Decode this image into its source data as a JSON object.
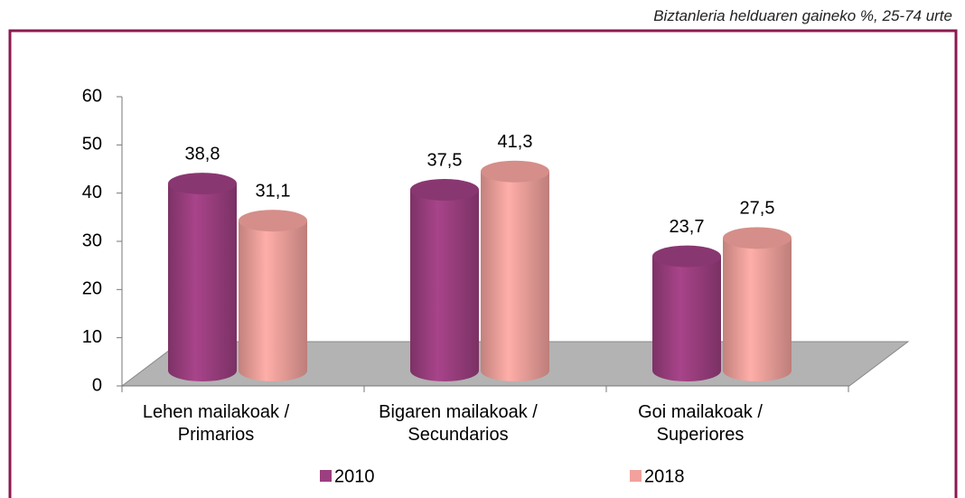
{
  "chart_data": {
    "type": "bar3d",
    "subtitle": "Biztanleria helduaren gaineko %,  25-74 urte",
    "categories": [
      "Lehen mailakoak /\nPrimarios",
      "Bigaren mailakoak /\nSecundarios",
      "Goi mailakoak /\nSuperiores"
    ],
    "series": [
      {
        "name": "2010",
        "color": "#9c3f80",
        "values": [
          38.8,
          37.5,
          23.7
        ],
        "value_labels": [
          "38,8",
          "37,5",
          "23,7"
        ]
      },
      {
        "name": "2018",
        "color": "#f2a19c",
        "values": [
          31.1,
          41.3,
          27.5
        ],
        "value_labels": [
          "31,1",
          "41,3",
          "27,5"
        ]
      }
    ],
    "ylim": [
      0,
      60
    ],
    "yticks": [
      0,
      10,
      20,
      30,
      40,
      50,
      60
    ],
    "frame_color": "#8b1a4f",
    "floor_color": "#b3b3b3"
  }
}
